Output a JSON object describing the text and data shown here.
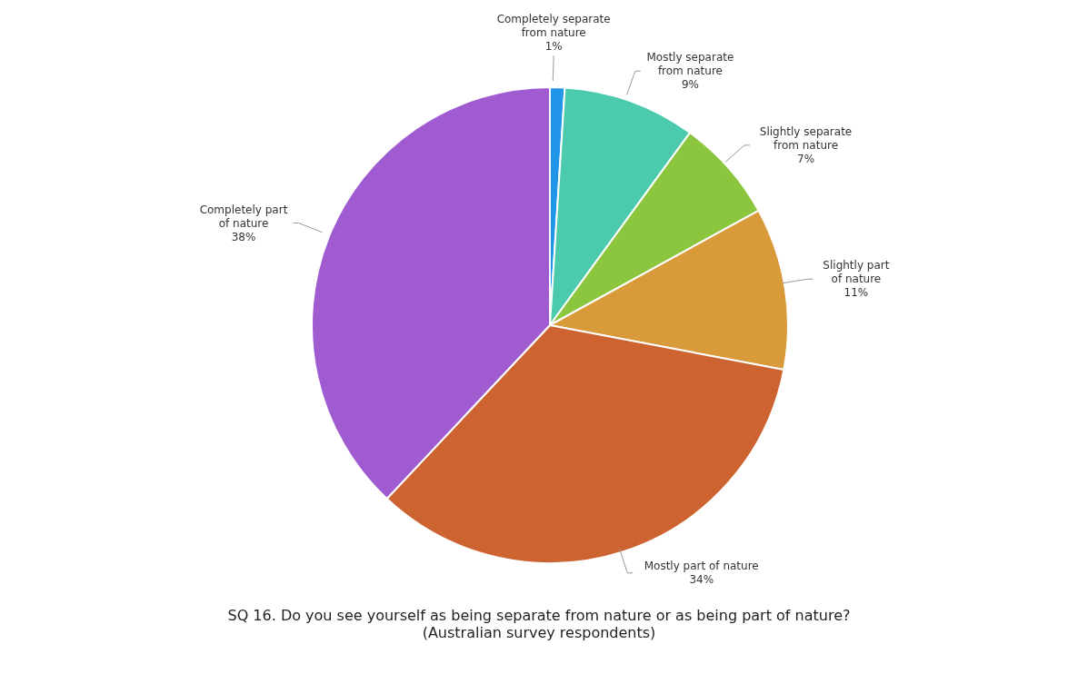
{
  "chart_data": {
    "type": "pie",
    "title": "SQ 16. Do you see yourself as being separate from nature or as being part of nature?",
    "subtitle": "(Australian survey respondents)",
    "categories": [
      "Completely separate from nature",
      "Mostly separate from nature",
      "Slightly separate from nature",
      "Slightly part of nature",
      "Mostly part of nature",
      "Completely part of nature"
    ],
    "values": [
      1,
      9,
      7,
      11,
      34,
      38
    ],
    "value_labels": [
      "1%",
      "9%",
      "7%",
      "11%",
      "34%",
      "38%"
    ],
    "colors": [
      "#2196e8",
      "#4bcaae",
      "#8cc63e",
      "#d99a3a",
      "#cd6330",
      "#a05bd0"
    ],
    "legend": false
  }
}
